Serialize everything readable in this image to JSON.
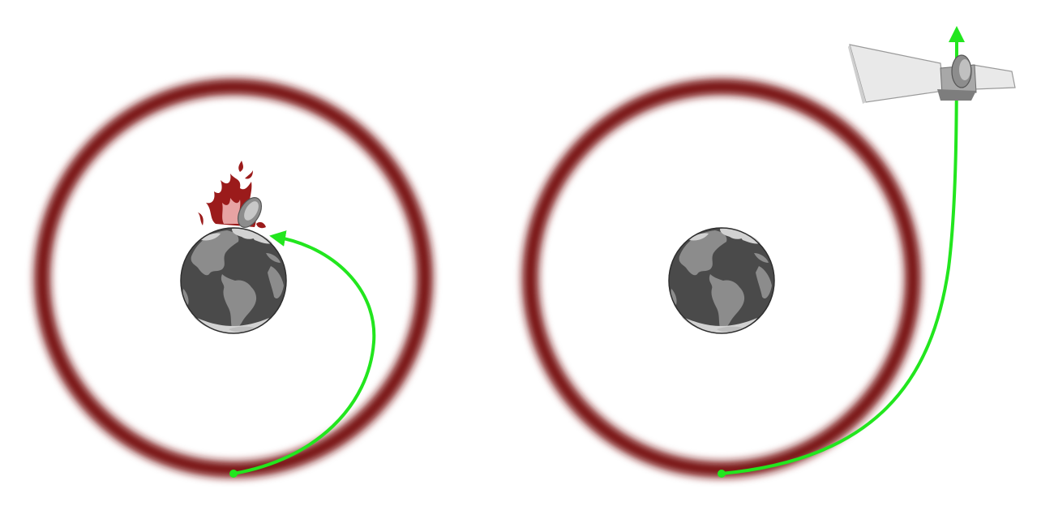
{
  "panels": [
    {
      "id": "left",
      "outcome": "burn-up",
      "ring_color": "#7a1414",
      "trajectory_color": "#22e61e",
      "object_icon": "burning-satellite-icon",
      "planet_icon": "earth-icon"
    },
    {
      "id": "right",
      "outcome": "escape",
      "ring_color": "#7a1414",
      "trajectory_color": "#22e61e",
      "object_icon": "satellite-icon",
      "planet_icon": "earth-icon"
    }
  ],
  "colors": {
    "ocean": "#4a4a4a",
    "land": "#8c8c8c",
    "ice": "#d2d2d2",
    "flame_dark": "#9b1b1b",
    "flame_light": "#e7a3a3",
    "satellite_panel": "#e9e9e9",
    "satellite_body": "#9a9a9a"
  }
}
